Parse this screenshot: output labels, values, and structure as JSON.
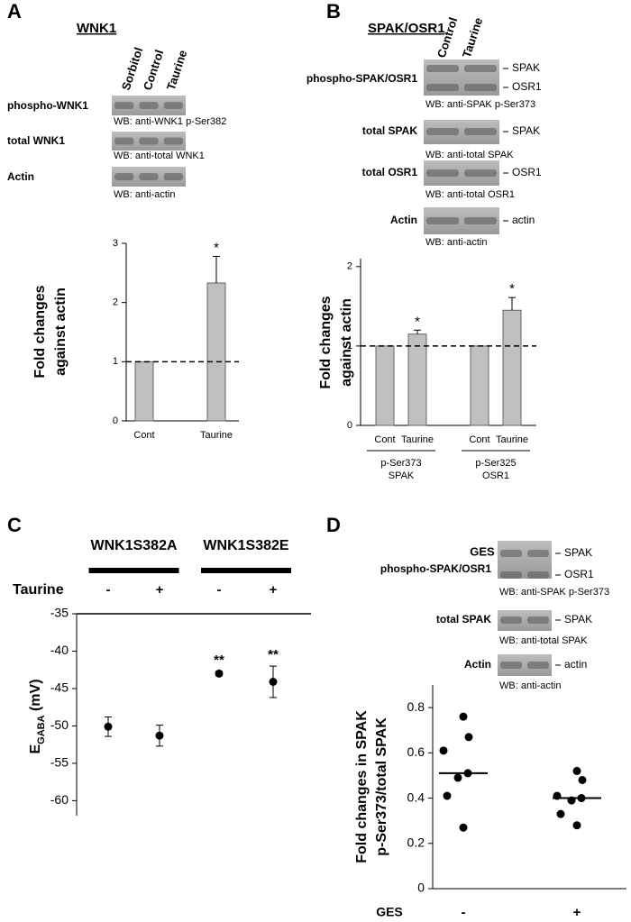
{
  "panels": [
    {
      "letter": "A",
      "title": "WNK1",
      "lanes": [
        "Sorbitol",
        "Control",
        "Taurine"
      ],
      "blots": [
        {
          "label": "phospho-WNK1",
          "wb": "WB: anti-WNK1 p-Ser382"
        },
        {
          "label": "total WNK1",
          "wb": "WB: anti-total WNK1"
        },
        {
          "label": "Actin",
          "wb": "WB: anti-actin"
        }
      ]
    },
    {
      "letter": "B",
      "title": "SPAK/OSR1",
      "lanes": [
        "Control",
        "Taurine"
      ],
      "blots": [
        {
          "label": "phospho-SPAK/OSR1",
          "bands": [
            "SPAK",
            "OSR1"
          ],
          "wb": "WB: anti-SPAK p-Ser373"
        },
        {
          "label": "total SPAK",
          "bands": [
            "SPAK"
          ],
          "wb": "WB: anti-total SPAK"
        },
        {
          "label": "total OSR1",
          "bands": [
            "OSR1"
          ],
          "wb": "WB: anti-total OSR1"
        },
        {
          "label": "Actin",
          "bands": [
            "actin"
          ],
          "wb": "WB: anti-actin"
        }
      ]
    },
    {
      "letter": "C"
    },
    {
      "letter": "D",
      "lanes_label": "GES",
      "lanes": [
        "-",
        "+"
      ],
      "blots": [
        {
          "label": "phospho-SPAK/OSR1",
          "bands": [
            "SPAK",
            "OSR1"
          ],
          "wb": "WB: anti-SPAK p-Ser373"
        },
        {
          "label": "total SPAK",
          "bands": [
            "SPAK"
          ],
          "wb": "WB: anti-total SPAK"
        },
        {
          "label": "Actin",
          "bands": [
            "actin"
          ],
          "wb": "WB: anti-actin"
        }
      ]
    }
  ],
  "chart_data": [
    {
      "type": "bar",
      "ylabel": [
        "Fold changes",
        "against actin"
      ],
      "categories": [
        "Cont",
        "Taurine"
      ],
      "values": [
        1,
        2.33
      ],
      "errors": [
        0,
        0.45
      ],
      "value_annotations": [
        null,
        "*"
      ],
      "reference_line": 1,
      "color": "#c0c0c0",
      "ylim": [
        0,
        3
      ],
      "yticks": [
        0,
        1,
        2,
        3
      ]
    },
    {
      "type": "bar",
      "ylabel": [
        "Fold changes",
        "against actin"
      ],
      "categories": [
        "Cont",
        "Taurine",
        "Cont",
        "Taurine"
      ],
      "groups": [
        [
          "p-Ser373",
          "SPAK"
        ],
        [
          "p-Ser325",
          "OSR1"
        ]
      ],
      "values": [
        1,
        1.15,
        1,
        1.45
      ],
      "errors": [
        0,
        0.05,
        0,
        0.16
      ],
      "value_annotations": [
        null,
        "*",
        null,
        "*"
      ],
      "reference_line": 1,
      "color": "#c0c0c0",
      "ylim": [
        0,
        2.1
      ],
      "yticks": [
        0,
        1,
        2
      ]
    },
    {
      "type": "errorscatter",
      "ylabel": {
        "main": "E",
        "sub": "GABA",
        "unit": " (mV)"
      },
      "groups": [
        "WNK1S382A",
        "WNK1S382E"
      ],
      "row_label": "Taurine",
      "categories": [
        "-",
        "+",
        "-",
        "+"
      ],
      "values": [
        -50.1,
        -51.3,
        -43,
        -44.1
      ],
      "errors": [
        1.3,
        1.4,
        0.3,
        2.1
      ],
      "value_annotations": [
        null,
        null,
        "**",
        "**"
      ],
      "color": "#000000",
      "ylim": [
        -62,
        -35
      ],
      "yticks": [
        -35,
        -40,
        -45,
        -50,
        -55,
        -60
      ]
    },
    {
      "type": "dot",
      "ylabel": [
        "Fold changes in SPAK",
        "p-Ser373/total SPAK"
      ],
      "xlabel": "GES",
      "categories": [
        "-",
        "+"
      ],
      "values": [
        [
          0.76,
          0.67,
          0.61,
          0.51,
          0.49,
          0.41,
          0.27
        ],
        [
          0.52,
          0.48,
          0.41,
          0.4,
          0.39,
          0.33,
          0.28
        ]
      ],
      "medians": [
        0.51,
        0.4
      ],
      "color": "#000000",
      "ylim": [
        0,
        0.9
      ],
      "yticks": [
        0,
        0.2,
        0.4,
        0.6,
        0.8
      ]
    }
  ]
}
